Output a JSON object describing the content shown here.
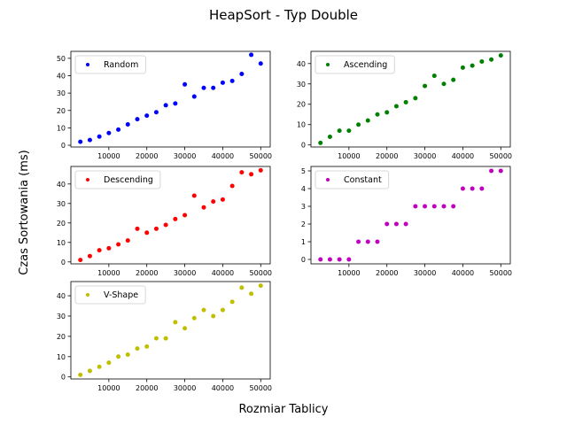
{
  "figure": {
    "title": "HeapSort - Typ Double",
    "xlabel": "Rozmiar Tablicy",
    "ylabel": "Czas Sortowania (ms)"
  },
  "chart_data": [
    {
      "type": "scatter",
      "series": [
        {
          "name": "Random",
          "color": "#0000ff",
          "x": [
            2500,
            5000,
            7500,
            10000,
            12500,
            15000,
            17500,
            20000,
            22500,
            25000,
            27500,
            30000,
            32500,
            35000,
            37500,
            40000,
            42500,
            45000,
            47500,
            50000
          ],
          "y": [
            2,
            3,
            5,
            7,
            9,
            12,
            15,
            17,
            19,
            23,
            24,
            35,
            28,
            33,
            33,
            36,
            37,
            41,
            52,
            47
          ]
        }
      ],
      "xlim": [
        0,
        52500
      ],
      "ylim": [
        -1,
        54
      ],
      "xticks": [
        10000,
        20000,
        30000,
        40000,
        50000
      ],
      "yticks": [
        0,
        10,
        20,
        30,
        40,
        50
      ],
      "legend": "top-left",
      "grid": false
    },
    {
      "type": "scatter",
      "series": [
        {
          "name": "Ascending",
          "color": "#008000",
          "x": [
            2500,
            5000,
            7500,
            10000,
            12500,
            15000,
            17500,
            20000,
            22500,
            25000,
            27500,
            30000,
            32500,
            35000,
            37500,
            40000,
            42500,
            45000,
            47500,
            50000
          ],
          "y": [
            1,
            4,
            7,
            7,
            10,
            12,
            15,
            16,
            19,
            21,
            23,
            29,
            34,
            30,
            32,
            38,
            39,
            41,
            42,
            44
          ]
        }
      ],
      "xlim": [
        0,
        52500
      ],
      "ylim": [
        -1,
        46
      ],
      "xticks": [
        10000,
        20000,
        30000,
        40000,
        50000
      ],
      "yticks": [
        0,
        10,
        20,
        30,
        40
      ],
      "legend": "top-left",
      "grid": false
    },
    {
      "type": "scatter",
      "series": [
        {
          "name": "Descending",
          "color": "#ff0000",
          "x": [
            2500,
            5000,
            7500,
            10000,
            12500,
            15000,
            17500,
            20000,
            22500,
            25000,
            27500,
            30000,
            32500,
            35000,
            37500,
            40000,
            42500,
            45000,
            47500,
            50000
          ],
          "y": [
            1,
            3,
            6,
            7,
            9,
            11,
            17,
            15,
            17,
            19,
            22,
            24,
            34,
            28,
            31,
            32,
            39,
            46,
            45,
            47
          ]
        }
      ],
      "xlim": [
        0,
        52500
      ],
      "ylim": [
        -1,
        49
      ],
      "xticks": [
        10000,
        20000,
        30000,
        40000,
        50000
      ],
      "yticks": [
        0,
        10,
        20,
        30,
        40
      ],
      "legend": "top-left",
      "grid": false
    },
    {
      "type": "scatter",
      "series": [
        {
          "name": "Constant",
          "color": "#bf00bf",
          "x": [
            2500,
            5000,
            7500,
            10000,
            12500,
            15000,
            17500,
            20000,
            22500,
            25000,
            27500,
            30000,
            32500,
            35000,
            37500,
            40000,
            42500,
            45000,
            47500,
            50000
          ],
          "y": [
            0,
            0,
            0,
            0,
            1,
            1,
            1,
            2,
            2,
            2,
            3,
            3,
            3,
            3,
            3,
            4,
            4,
            4,
            5,
            5
          ]
        }
      ],
      "xlim": [
        0,
        52500
      ],
      "ylim": [
        -0.25,
        5.25
      ],
      "xticks": [
        10000,
        20000,
        30000,
        40000,
        50000
      ],
      "yticks": [
        0,
        1,
        2,
        3,
        4,
        5
      ],
      "legend": "top-left",
      "grid": false
    },
    {
      "type": "scatter",
      "series": [
        {
          "name": "V-Shape",
          "color": "#bfbf00",
          "x": [
            2500,
            5000,
            7500,
            10000,
            12500,
            15000,
            17500,
            20000,
            22500,
            25000,
            27500,
            30000,
            32500,
            35000,
            37500,
            40000,
            42500,
            45000,
            47500,
            50000
          ],
          "y": [
            1,
            3,
            5,
            7,
            10,
            11,
            14,
            15,
            19,
            19,
            27,
            24,
            29,
            33,
            30,
            33,
            37,
            44,
            41,
            45
          ]
        }
      ],
      "xlim": [
        0,
        52500
      ],
      "ylim": [
        -1,
        47
      ],
      "xticks": [
        10000,
        20000,
        30000,
        40000,
        50000
      ],
      "yticks": [
        0,
        10,
        20,
        30,
        40
      ],
      "legend": "top-left",
      "grid": false
    }
  ]
}
